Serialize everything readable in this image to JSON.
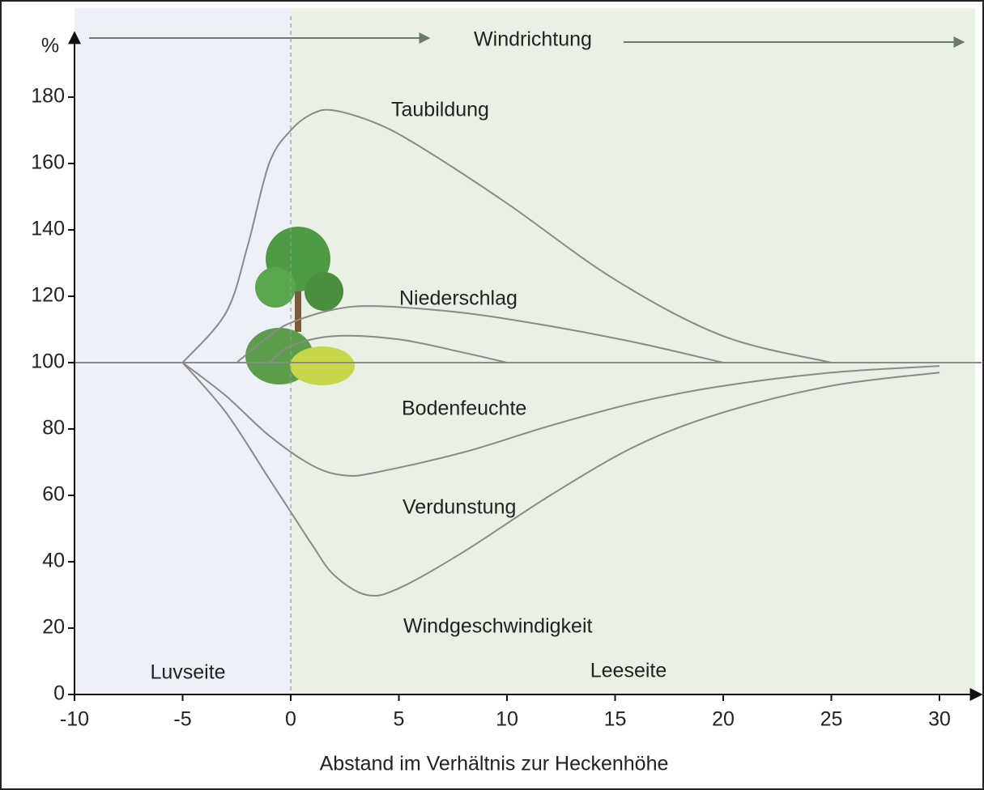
{
  "chart_data": {
    "type": "line",
    "y_label": "%",
    "x_label": "Abstand im Verhältnis zur Heckenhöhe",
    "annotations": {
      "wind": "Windrichtung",
      "left": "Luvseite",
      "right": "Leeseite"
    },
    "xlim": [
      -10,
      30
    ],
    "ylim": [
      0,
      180
    ],
    "xticks": [
      -10,
      -5,
      0,
      5,
      10,
      15,
      20,
      25,
      30
    ],
    "yticks": [
      0,
      20,
      40,
      60,
      80,
      100,
      120,
      140,
      160,
      180
    ],
    "color": "#8a8a8a",
    "series": [
      {
        "name": "Taubildung",
        "x": [
          -5,
          -3,
          -2,
          -1,
          0,
          1,
          2,
          4,
          6,
          10,
          15,
          20,
          25
        ],
        "values": [
          100,
          115,
          135,
          160,
          170,
          175,
          176,
          172,
          165,
          148,
          125,
          108,
          100
        ]
      },
      {
        "name": "Niederschlag",
        "x": [
          -2.5,
          -1,
          0,
          2,
          4,
          8,
          12,
          16,
          20
        ],
        "values": [
          100,
          108,
          112,
          116,
          117,
          115,
          111,
          106,
          100
        ]
      },
      {
        "name": "Bodenfeuchte",
        "x": [
          -1,
          0,
          2,
          5,
          8,
          10
        ],
        "values": [
          100,
          105,
          108,
          107,
          103,
          100
        ]
      },
      {
        "name": "Verdunstung",
        "x": [
          -5,
          -3,
          -1,
          1,
          2.5,
          4,
          8,
          12,
          16,
          20,
          25,
          30
        ],
        "values": [
          100,
          90,
          78,
          69,
          66,
          67,
          73,
          81,
          88,
          93,
          97,
          99
        ]
      },
      {
        "name": "Windgeschwindigkeit",
        "x": [
          -5,
          -3,
          -1,
          0,
          1,
          2,
          3.5,
          5,
          8,
          12,
          16,
          20,
          25,
          30
        ],
        "values": [
          100,
          85,
          65,
          55,
          45,
          36,
          30,
          32,
          43,
          60,
          75,
          85,
          93,
          97
        ]
      }
    ]
  }
}
